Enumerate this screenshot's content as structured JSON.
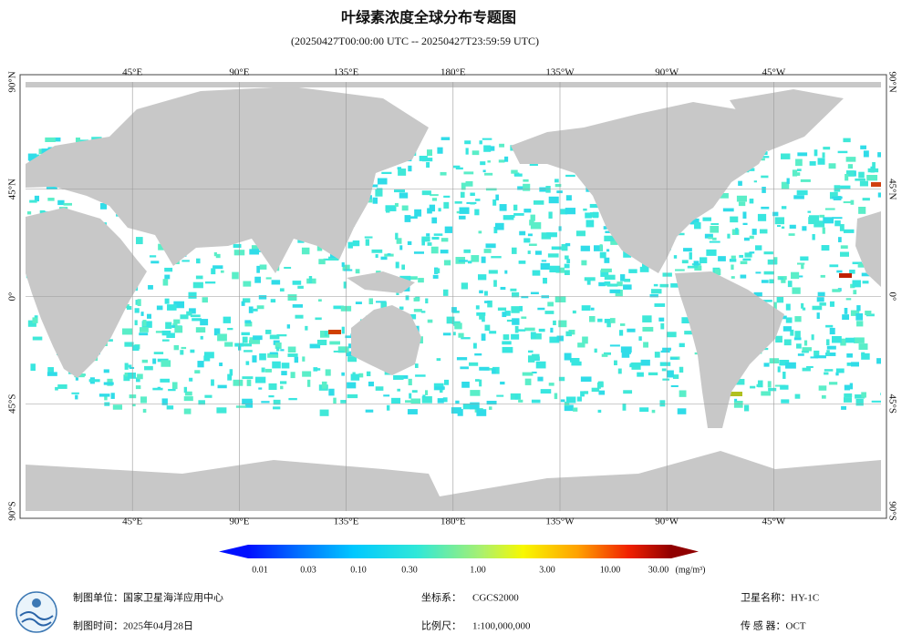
{
  "header": {
    "title": "叶绿素浓度全球分布专题图",
    "subtitle": "(20250427T00:00:00 UTC -- 20250427T23:59:59 UTC)"
  },
  "map": {
    "lon_labels": [
      "45°E",
      "90°E",
      "135°E",
      "180°E",
      "135°W",
      "90°W",
      "45°W"
    ],
    "lat_labels": [
      "90°N",
      "45°N",
      "0°",
      "45°S",
      "90°S"
    ]
  },
  "colorbar": {
    "ticks": [
      "0.01",
      "0.03",
      "0.10",
      "0.30",
      "1.00",
      "3.00",
      "10.00",
      "30.00"
    ],
    "unit": "(mg/m³)"
  },
  "footer": {
    "producer": {
      "label": "制图单位：",
      "value": "国家卫星海洋应用中心"
    },
    "date": {
      "label": "制图时间：",
      "value": "2025年04月28日"
    },
    "crs": {
      "label": "坐标系：",
      "value": "CGCS2000"
    },
    "scale": {
      "label": "比例尺：",
      "value": "1:100,000,000"
    },
    "satellite": {
      "label": "卫星名称：",
      "value": "HY-1C"
    },
    "sensor": {
      "label": "传 感 器：",
      "value": "OCT"
    }
  }
}
